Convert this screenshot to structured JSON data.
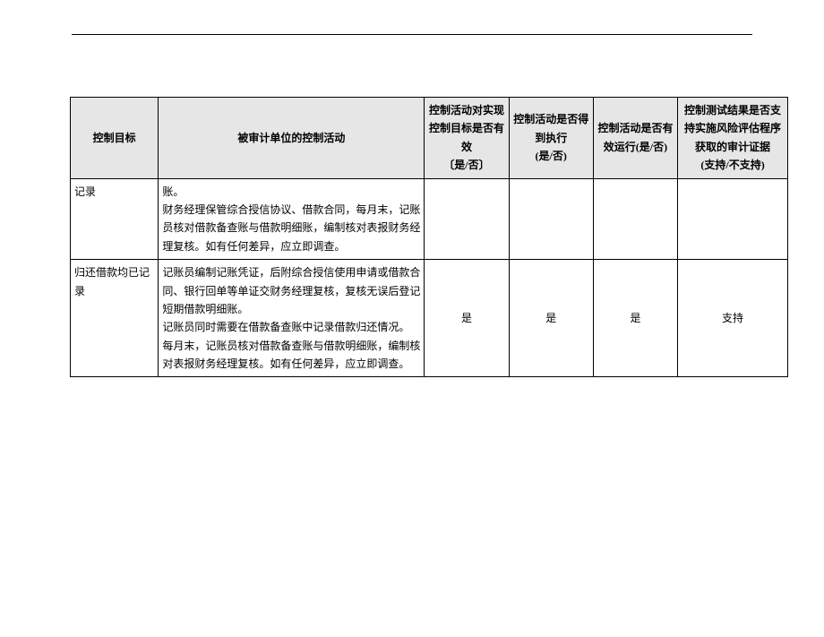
{
  "table": {
    "header_bg": "#e6e6e6",
    "border_color": "#000000",
    "headers": {
      "c0": "控制目标",
      "c1": "被审计单位的控制活动",
      "c2": "控制活动对实现控制目标是否有效\n〔是/否〕",
      "c3": "控制活动是否得到执行\n(是/否)",
      "c4": "控制活动是否有效运行(是/否)",
      "c5": "控制测试结果是否支持实施风险评估程序获取的审计证据\n(支持/不支持)"
    },
    "rows": [
      {
        "objective": "记录",
        "activity": "账。\n财务经理保管综合授信协议、借款合同，每月末，记账员核对借款备查账与借款明细账，编制核对表报财务经理复核。如有任何差异，应立即调查。",
        "effective": "",
        "executed": "",
        "operating": "",
        "support": ""
      },
      {
        "objective": "归还借款均已记录",
        "activity": "记账员编制记账凭证，后附综合授信使用申请或借款合同、银行回单等单证交财务经理复核，复核无误后登记短期借款明细账。\n记账员同时需要在借款备查账中记录借款归还情况。\n每月末，记账员核对借款备查账与借款明细账，编制核对表报财务经理复核。如有任何差异，应立即调查。",
        "effective": "是",
        "executed": "是",
        "operating": "是",
        "support": "支持"
      }
    ]
  }
}
